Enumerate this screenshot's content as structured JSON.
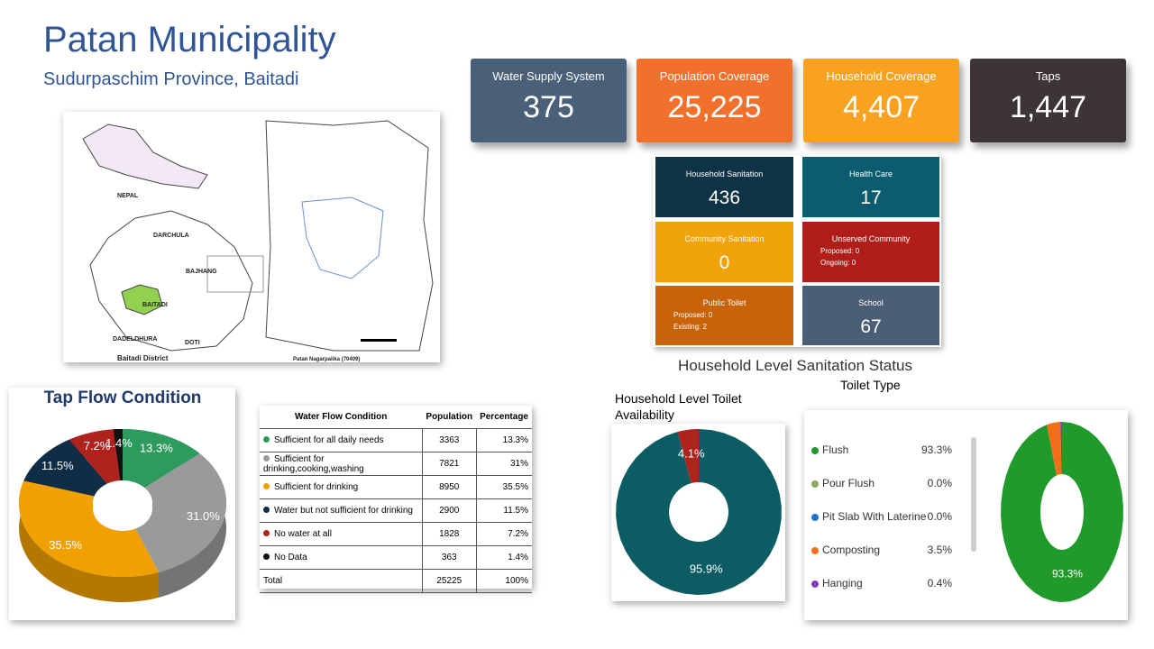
{
  "header": {
    "title": "Patan Municipality",
    "subtitle": "Sudurpaschim Province, Baitadi"
  },
  "kpis": [
    {
      "label": "Water Supply System",
      "value": "375"
    },
    {
      "label": "Population Coverage",
      "value": "25,225"
    },
    {
      "label": "Household Coverage",
      "value": "4,407"
    },
    {
      "label": "Taps",
      "value": "1,447"
    }
  ],
  "sanitation_tiles": [
    {
      "label": "Household Sanitation",
      "value": "436"
    },
    {
      "label": "Health Care",
      "value": "17"
    },
    {
      "label": "Community Sanitation",
      "value": "0"
    },
    {
      "label": "Unserved Community",
      "lines": [
        "Proposed: 0",
        "Ongoing: 0"
      ]
    },
    {
      "label": "Public Toilet",
      "lines": [
        "Proposed: 0",
        "Existing: 2"
      ]
    },
    {
      "label": "School",
      "value": "67"
    }
  ],
  "map": {
    "labels": [
      "NEPAL",
      "DARCHULA",
      "BAJHANG",
      "BAITADI",
      "DADELDHURA",
      "DOTI",
      "Baitadi District",
      "Patan Nagarpalika (70409)"
    ]
  },
  "table": {
    "headers": [
      "Water Flow Condition",
      "Population",
      "Percentage"
    ],
    "rows": [
      [
        "Sufficient for all daily needs",
        "3363",
        "13.3%"
      ],
      [
        "Sufficient for drinking,cooking,washing",
        "7821",
        "31%"
      ],
      [
        "Sufficient for drinking",
        "8950",
        "35.5%"
      ],
      [
        "Water but not sufficient for drinking",
        "2900",
        "11.5%"
      ],
      [
        "No water at all",
        "1828",
        "7.2%"
      ],
      [
        "No Data",
        "363",
        "1.4%"
      ],
      [
        "Total",
        "25225",
        "100%"
      ]
    ]
  },
  "section_title": "Household Level Sanitation Status",
  "chart_data": [
    {
      "type": "pie",
      "title": "Tap Flow Condition",
      "categories": [
        "Sufficient for all daily needs",
        "Sufficient for drinking,cooking,washing",
        "Sufficient for drinking",
        "Water but not sufficient for drinking",
        "No water at all",
        "No Data"
      ],
      "values": [
        13.3,
        31.0,
        35.5,
        11.5,
        7.2,
        1.4
      ],
      "value_labels": [
        "13.3%",
        "31.0%",
        "35.5%",
        "11.5%",
        "7.2%",
        "1.4%"
      ],
      "colors": [
        "#2f9a5e",
        "#9a9a9a",
        "#f0a000",
        "#0f2d44",
        "#b0231c",
        "#111111"
      ]
    },
    {
      "type": "pie",
      "title": "Household Level Toilet Availability",
      "values": [
        4.1,
        95.9
      ],
      "value_labels": [
        "4.1%",
        "95.9%"
      ],
      "colors": [
        "#b0231c",
        "#0b5c63"
      ]
    },
    {
      "type": "pie",
      "title": "Toilet Type",
      "categories": [
        "Flush",
        "Pour Flush",
        "Pit Slab With Laterine",
        "Composting",
        "Hanging"
      ],
      "values": [
        93.3,
        0.0,
        0.0,
        3.5,
        0.4
      ],
      "value_labels": [
        "93.3%",
        "0.0%",
        "0.0%",
        "3.5%",
        "0.4%"
      ],
      "colors": [
        "#1f9a2b",
        "#8aa860",
        "#1f6fd1",
        "#f2701a",
        "#7b3fbf"
      ]
    }
  ]
}
